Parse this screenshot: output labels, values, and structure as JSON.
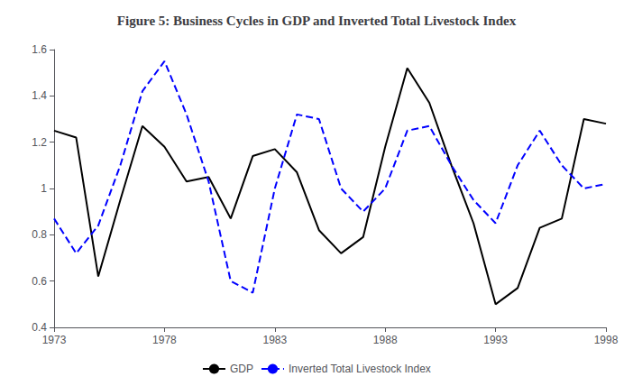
{
  "chart_data": {
    "type": "line",
    "title": "Figure 5: Business Cycles in GDP and Inverted Total Livestock Index",
    "x": [
      1973,
      1974,
      1975,
      1976,
      1977,
      1978,
      1979,
      1980,
      1981,
      1982,
      1983,
      1984,
      1985,
      1986,
      1987,
      1988,
      1989,
      1990,
      1991,
      1992,
      1993,
      1994,
      1995,
      1996,
      1997,
      1998
    ],
    "series": [
      {
        "name": "GDP",
        "color": "#000000",
        "line_style": "solid",
        "values": [
          1.25,
          1.22,
          0.62,
          0.95,
          1.27,
          1.18,
          1.03,
          1.05,
          0.87,
          1.14,
          1.17,
          1.07,
          0.82,
          0.72,
          0.79,
          1.18,
          1.52,
          1.37,
          1.1,
          0.85,
          0.5,
          0.57,
          0.83,
          0.87,
          1.3,
          1.28
        ]
      },
      {
        "name": "Inverted Total Livestock Index",
        "color": "#0000ff",
        "line_style": "dashed",
        "values": [
          0.87,
          0.72,
          0.84,
          1.1,
          1.42,
          1.55,
          1.32,
          1.03,
          0.6,
          0.55,
          1.0,
          1.32,
          1.3,
          1.0,
          0.9,
          1.0,
          1.25,
          1.27,
          1.1,
          0.95,
          0.85,
          1.1,
          1.25,
          1.1,
          1.0,
          1.02
        ]
      }
    ],
    "xlim": [
      1973,
      1998
    ],
    "xticks": [
      1973,
      1978,
      1983,
      1988,
      1993,
      1998
    ],
    "ylim": [
      0.4,
      1.6
    ],
    "yticks": [
      0.4,
      0.6,
      0.8,
      1.0,
      1.2,
      1.4,
      1.6
    ],
    "grid": false,
    "legend": "bottom"
  }
}
